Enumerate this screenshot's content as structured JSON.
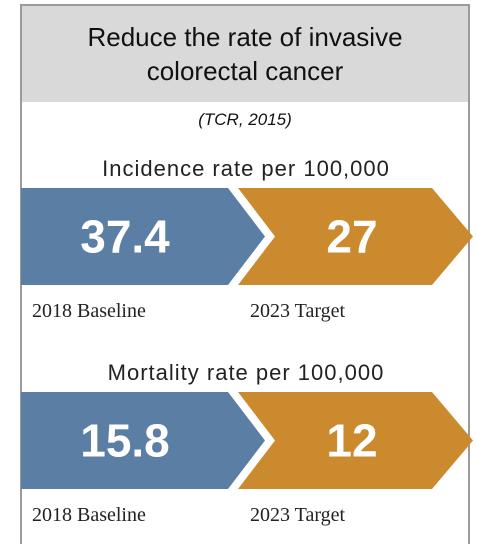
{
  "header": {
    "title": "Reduce the rate of invasive colorectal cancer",
    "source": "(TCR, 2015)"
  },
  "metrics": [
    {
      "label": "Incidence rate per 100,000",
      "baseline": 37.4,
      "target": 27,
      "baseline_label": "2018 Baseline",
      "target_label": "2023 Target"
    },
    {
      "label": "Mortality rate per 100,000",
      "baseline": 15.8,
      "target": 12,
      "baseline_label": "2018 Baseline",
      "target_label": "2023 Target"
    }
  ]
}
